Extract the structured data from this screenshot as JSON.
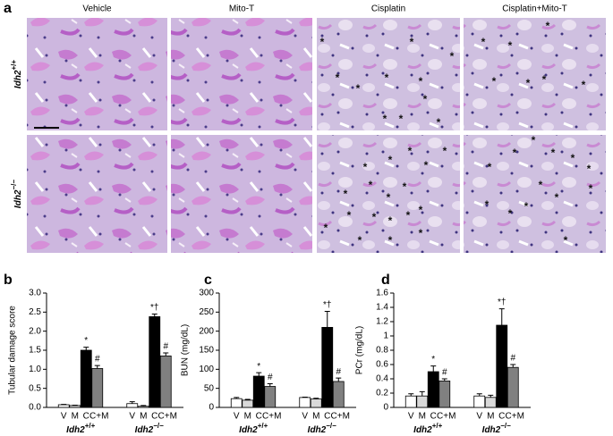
{
  "image_panel": {
    "label": "a",
    "columns": [
      "Vehicle",
      "Mito-T",
      "Cisplatin",
      "Cisplatin+Mito-T"
    ],
    "rows": [
      {
        "gene": "Idh2",
        "genotype": "+/+"
      },
      {
        "gene": "Idh2",
        "genotype": "−/−"
      }
    ],
    "marker": "*"
  },
  "chart_data": [
    {
      "type": "bar",
      "label": "b",
      "ylabel": "Tubular damage score",
      "ylim": [
        0,
        3
      ],
      "yticks": [
        {
          "value": 0,
          "label": "0.0"
        },
        {
          "value": 0.5,
          "label": "0.5"
        },
        {
          "value": 1,
          "label": "1.0"
        },
        {
          "value": 1.5,
          "label": "1.5"
        },
        {
          "value": 2,
          "label": "2.0"
        },
        {
          "value": 2.5,
          "label": "2.5"
        },
        {
          "value": 3,
          "label": "3.0"
        }
      ],
      "categories": [
        {
          "gene": "Idh2",
          "genotype": "+/+"
        },
        {
          "gene": "Idh2",
          "genotype": "−/−"
        }
      ],
      "series": [
        {
          "name": "V",
          "color": "#ffffff",
          "values": [
            0.07,
            0.1
          ],
          "errors": [
            0.01,
            0.05
          ],
          "annotations": [
            null,
            null
          ]
        },
        {
          "name": "M",
          "color": "#d9d9d9",
          "values": [
            0.05,
            0.03
          ],
          "errors": [
            0.01,
            0.02
          ],
          "annotations": [
            null,
            null
          ]
        },
        {
          "name": "C",
          "color": "#000000",
          "values": [
            1.5,
            2.38
          ],
          "errors": [
            0.08,
            0.07
          ],
          "annotations": [
            "*",
            "*†"
          ]
        },
        {
          "name": "C+M",
          "color": "#808080",
          "values": [
            1.02,
            1.35
          ],
          "errors": [
            0.08,
            0.08
          ],
          "annotations": [
            "#",
            "#"
          ]
        }
      ]
    },
    {
      "type": "bar",
      "label": "c",
      "ylabel": "BUN (mg/dL)",
      "ylim": [
        0,
        300
      ],
      "yticks": [
        0,
        50,
        100,
        150,
        200,
        250,
        300
      ],
      "categories": [
        {
          "gene": "Idh2",
          "genotype": "+/+"
        },
        {
          "gene": "Idh2",
          "genotype": "−/−"
        }
      ],
      "series": [
        {
          "name": "V",
          "color": "#ffffff",
          "values": [
            23,
            26
          ],
          "errors": [
            3,
            1
          ],
          "annotations": [
            null,
            null
          ]
        },
        {
          "name": "M",
          "color": "#d9d9d9",
          "values": [
            19,
            22
          ],
          "errors": [
            2,
            2
          ],
          "annotations": [
            null,
            null
          ]
        },
        {
          "name": "C",
          "color": "#000000",
          "values": [
            82,
            210
          ],
          "errors": [
            9,
            42
          ],
          "annotations": [
            "*",
            "*†"
          ]
        },
        {
          "name": "C+M",
          "color": "#808080",
          "values": [
            55,
            68
          ],
          "errors": [
            7,
            9
          ],
          "annotations": [
            "#",
            "#"
          ]
        }
      ]
    },
    {
      "type": "bar",
      "label": "d",
      "ylabel": "PCr (mg/dL)",
      "ylim": [
        0,
        1.6
      ],
      "yticks": [
        0,
        0.2,
        0.4,
        0.6,
        0.8,
        1,
        1.2,
        1.4,
        1.6
      ],
      "categories": [
        {
          "gene": "Idh2",
          "genotype": "+/+"
        },
        {
          "gene": "Idh2",
          "genotype": "−/−"
        }
      ],
      "series": [
        {
          "name": "V",
          "color": "#ffffff",
          "values": [
            0.16,
            0.16
          ],
          "errors": [
            0.03,
            0.03
          ],
          "annotations": [
            null,
            null
          ]
        },
        {
          "name": "M",
          "color": "#d9d9d9",
          "values": [
            0.16,
            0.14
          ],
          "errors": [
            0.06,
            0.03
          ],
          "annotations": [
            null,
            null
          ]
        },
        {
          "name": "C",
          "color": "#000000",
          "values": [
            0.5,
            1.15
          ],
          "errors": [
            0.08,
            0.23
          ],
          "annotations": [
            "*",
            "*†"
          ]
        },
        {
          "name": "C+M",
          "color": "#808080",
          "values": [
            0.37,
            0.56
          ],
          "errors": [
            0.03,
            0.04
          ],
          "annotations": [
            "#",
            "#"
          ]
        }
      ]
    }
  ]
}
